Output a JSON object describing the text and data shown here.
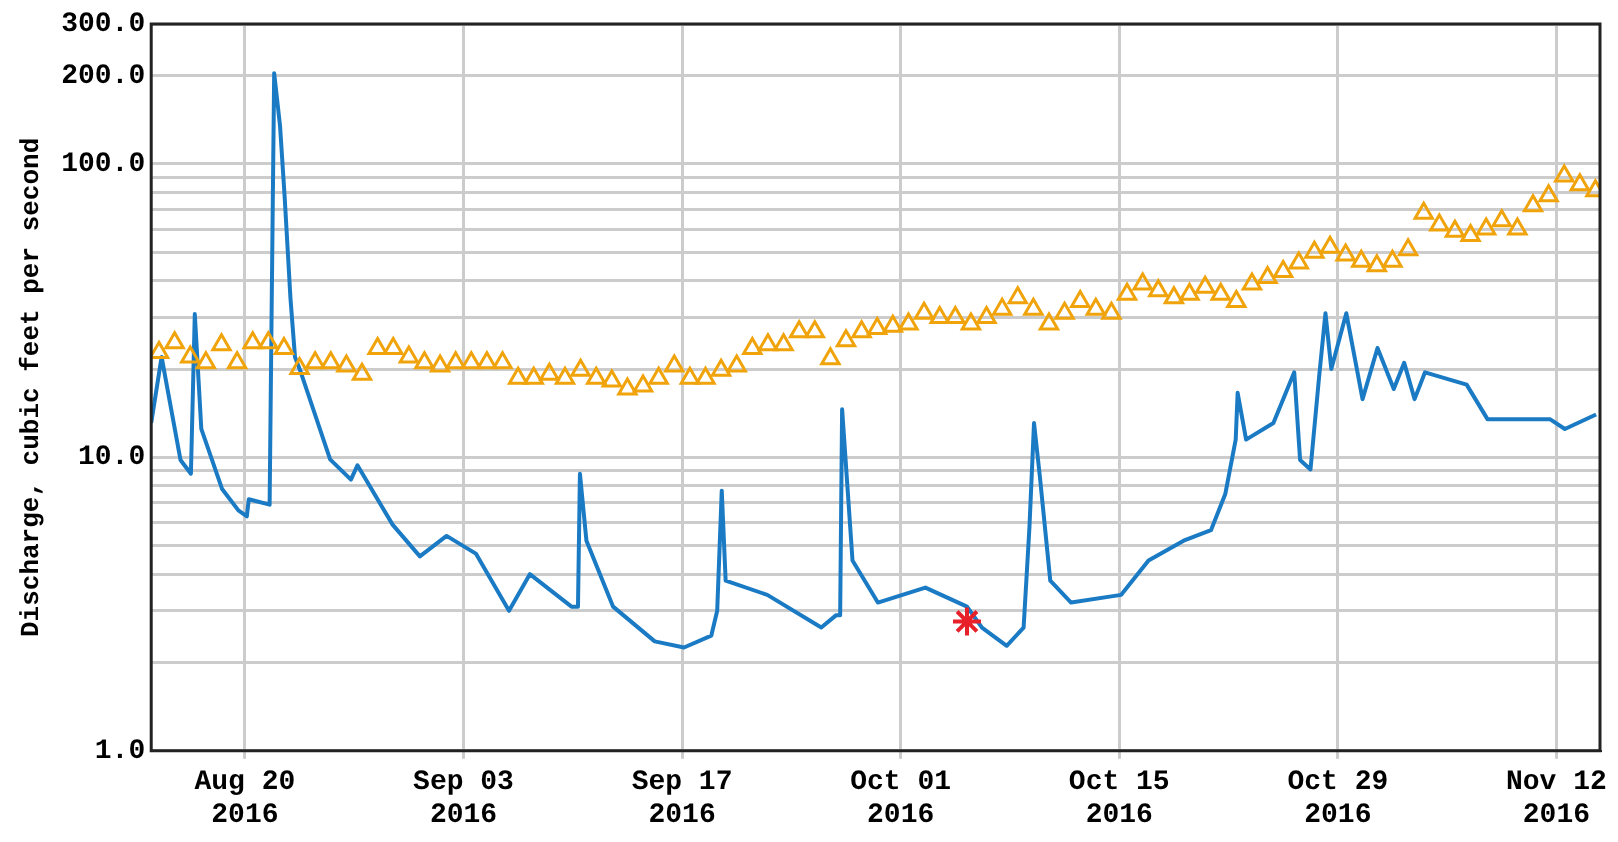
{
  "chart_data": {
    "type": "line",
    "ylabel": "Discharge, cubic feet per second",
    "log": "y",
    "grid": true,
    "xlim": [
      "2016-08-14T00:00",
      "2016-11-14T19:00"
    ],
    "xticks": [
      {
        "value": "2016-08-20",
        "label": "Aug 20\n2016"
      },
      {
        "value": "2016-09-03",
        "label": "Sep 03\n2016"
      },
      {
        "value": "2016-09-17",
        "label": "Sep 17\n2016"
      },
      {
        "value": "2016-10-01",
        "label": "Oct 01\n2016"
      },
      {
        "value": "2016-10-15",
        "label": "Oct 15\n2016"
      },
      {
        "value": "2016-10-29",
        "label": "Oct 29\n2016"
      },
      {
        "value": "2016-11-12",
        "label": "Nov 12\n2016"
      }
    ],
    "ylim": [
      1,
      300
    ],
    "yticks": [
      {
        "value": 1,
        "label": "1.0"
      },
      {
        "value": 2,
        "label": null
      },
      {
        "value": 3,
        "label": null
      },
      {
        "value": 4,
        "label": null
      },
      {
        "value": 5,
        "label": null
      },
      {
        "value": 6,
        "label": null
      },
      {
        "value": 7,
        "label": null
      },
      {
        "value": 8,
        "label": null
      },
      {
        "value": 9,
        "label": null
      },
      {
        "value": 10,
        "label": "10.0"
      },
      {
        "value": 20,
        "label": null
      },
      {
        "value": 30,
        "label": null
      },
      {
        "value": 40,
        "label": null
      },
      {
        "value": 50,
        "label": null
      },
      {
        "value": 60,
        "label": null
      },
      {
        "value": 70,
        "label": null
      },
      {
        "value": 80,
        "label": null
      },
      {
        "value": 90,
        "label": null
      },
      {
        "value": 100,
        "label": "100.0"
      },
      {
        "value": 200,
        "label": "200.0"
      },
      {
        "value": 300,
        "label": "300.0"
      }
    ],
    "series": [
      {
        "type": "line",
        "marker": "none",
        "line_style": "solid",
        "color": "#1a7bc4",
        "x": [
          "2016-08-14T00:00",
          "2016-08-14T16:00",
          "2016-08-14T22:00",
          "2016-08-15T21:00",
          "2016-08-16T13:00",
          "2016-08-16T19:00",
          "2016-08-17T05:00",
          "2016-08-18T13:00",
          "2016-08-19T14:00",
          "2016-08-20T03:00",
          "2016-08-20T06:00",
          "2016-08-21T14:00",
          "2016-08-21T17:00",
          "2016-08-21T21:00",
          "2016-08-22T06:00",
          "2016-08-22T13:00",
          "2016-08-22T22:00",
          "2016-08-23T05:00",
          "2016-08-23T14:00",
          "2016-08-25T11:00",
          "2016-08-26T19:00",
          "2016-08-27T05:00",
          "2016-08-29T11:00",
          "2016-08-31T05:00",
          "2016-09-01T22:00",
          "2016-09-03T19:00",
          "2016-09-05T22:00",
          "2016-09-07T06:00",
          "2016-09-09T22:00",
          "2016-09-10T08:00",
          "2016-09-10T11:00",
          "2016-09-10T21:00",
          "2016-09-12T14:00",
          "2016-09-15T06:00",
          "2016-09-17T03:00",
          "2016-09-18T21:00",
          "2016-09-19T06:00",
          "2016-09-19T13:00",
          "2016-09-19T19:00",
          "2016-09-22T11:00",
          "2016-09-25T22:00",
          "2016-09-26T21:00",
          "2016-09-27T03:00",
          "2016-09-27T06:00",
          "2016-09-27T22:00",
          "2016-09-29T13:00",
          "2016-10-02T14:00",
          "2016-10-05T06:00",
          "2016-10-06T05:00",
          "2016-10-07T19:00",
          "2016-10-08T21:00",
          "2016-10-09T06:00",
          "2016-10-09T13:00",
          "2016-10-09T22:00",
          "2016-10-10T14:00",
          "2016-10-11T22:00",
          "2016-10-15T03:00",
          "2016-10-16T21:00",
          "2016-10-19T03:00",
          "2016-10-20T21:00",
          "2016-10-21T19:00",
          "2016-10-22T11:00",
          "2016-10-22T14:00",
          "2016-10-23T03:00",
          "2016-10-24T21:00",
          "2016-10-26T05:00",
          "2016-10-26T14:00",
          "2016-10-27T06:00",
          "2016-10-27T19:00",
          "2016-10-28T05:00",
          "2016-10-28T14:00",
          "2016-10-29T13:00",
          "2016-10-30T14:00",
          "2016-10-31T13:00",
          "2016-11-01T14:00",
          "2016-11-02T06:00",
          "2016-11-02T22:00",
          "2016-11-03T14:00",
          "2016-11-06T06:00",
          "2016-11-07T14:00",
          "2016-11-11T14:00",
          "2016-11-12T13:00",
          "2016-11-14T13:00"
        ],
        "values": [
          13.1,
          22,
          18.6,
          9.8,
          8.8,
          30.8,
          12.5,
          7.8,
          6.6,
          6.3,
          7.2,
          6.9,
          30,
          204,
          135,
          78,
          35,
          22,
          19.5,
          9.85,
          8.4,
          9.4,
          5.9,
          4.6,
          5.4,
          4.7,
          3.0,
          4.0,
          3.1,
          3.1,
          8.8,
          5.2,
          3.1,
          2.36,
          2.25,
          2.47,
          3.0,
          7.7,
          3.8,
          3.4,
          2.63,
          2.9,
          2.9,
          14.6,
          4.45,
          3.2,
          3.6,
          3.1,
          2.63,
          2.28,
          2.63,
          5.8,
          13.1,
          8.6,
          3.8,
          3.2,
          3.4,
          4.45,
          5.2,
          5.65,
          7.5,
          11.5,
          16.6,
          11.5,
          13.1,
          19.5,
          9.8,
          9.1,
          18.6,
          31,
          20,
          31,
          15.8,
          23.6,
          17.1,
          21,
          15.8,
          19.5,
          17.7,
          13.5,
          13.5,
          12.5,
          14.0
        ]
      },
      {
        "type": "scatter",
        "marker": "triangle",
        "color": "#f0a30a",
        "x": [
          "2016-08-14T12:00",
          "2016-08-15T12:00",
          "2016-08-16T12:00",
          "2016-08-17T12:00",
          "2016-08-18T12:00",
          "2016-08-19T12:00",
          "2016-08-20T12:00",
          "2016-08-21T12:00",
          "2016-08-22T12:00",
          "2016-08-23T12:00",
          "2016-08-24T12:00",
          "2016-08-25T12:00",
          "2016-08-26T12:00",
          "2016-08-27T12:00",
          "2016-08-28T12:00",
          "2016-08-29T12:00",
          "2016-08-30T12:00",
          "2016-08-31T12:00",
          "2016-09-01T12:00",
          "2016-09-02T12:00",
          "2016-09-03T12:00",
          "2016-09-04T12:00",
          "2016-09-05T12:00",
          "2016-09-06T12:00",
          "2016-09-07T12:00",
          "2016-09-08T12:00",
          "2016-09-09T12:00",
          "2016-09-10T12:00",
          "2016-09-11T12:00",
          "2016-09-12T12:00",
          "2016-09-13T12:00",
          "2016-09-14T12:00",
          "2016-09-15T12:00",
          "2016-09-16T12:00",
          "2016-09-17T12:00",
          "2016-09-18T12:00",
          "2016-09-19T12:00",
          "2016-09-20T12:00",
          "2016-09-21T12:00",
          "2016-09-22T12:00",
          "2016-09-23T12:00",
          "2016-09-24T12:00",
          "2016-09-25T12:00",
          "2016-09-26T12:00",
          "2016-09-27T12:00",
          "2016-09-28T12:00",
          "2016-09-29T12:00",
          "2016-09-30T12:00",
          "2016-10-01T12:00",
          "2016-10-02T12:00",
          "2016-10-03T12:00",
          "2016-10-04T12:00",
          "2016-10-05T12:00",
          "2016-10-06T12:00",
          "2016-10-07T12:00",
          "2016-10-08T12:00",
          "2016-10-09T12:00",
          "2016-10-10T12:00",
          "2016-10-11T12:00",
          "2016-10-12T12:00",
          "2016-10-13T12:00",
          "2016-10-14T12:00",
          "2016-10-15T12:00",
          "2016-10-16T12:00",
          "2016-10-17T12:00",
          "2016-10-18T12:00",
          "2016-10-19T12:00",
          "2016-10-20T12:00",
          "2016-10-21T12:00",
          "2016-10-22T12:00",
          "2016-10-23T12:00",
          "2016-10-24T12:00",
          "2016-10-25T12:00",
          "2016-10-26T12:00",
          "2016-10-27T12:00",
          "2016-10-28T12:00",
          "2016-10-29T12:00",
          "2016-10-30T12:00",
          "2016-10-31T12:00",
          "2016-11-01T12:00",
          "2016-11-02T12:00",
          "2016-11-03T12:00",
          "2016-11-04T12:00",
          "2016-11-05T12:00",
          "2016-11-06T12:00",
          "2016-11-07T12:00",
          "2016-11-08T12:00",
          "2016-11-09T12:00",
          "2016-11-10T12:00",
          "2016-11-11T12:00",
          "2016-11-12T12:00",
          "2016-11-13T12:00",
          "2016-11-14T12:00"
        ],
        "values": [
          22.8,
          24.6,
          22,
          21,
          24.2,
          21,
          24.6,
          24.6,
          23.5,
          20.1,
          21,
          21,
          20.5,
          19.2,
          23.5,
          23.5,
          22,
          21,
          20.5,
          21,
          21,
          21,
          21,
          18.6,
          18.6,
          19.2,
          18.6,
          19.8,
          18.6,
          18.2,
          17.1,
          17.5,
          18.6,
          20.5,
          18.6,
          18.6,
          19.8,
          20.5,
          23.5,
          24.2,
          24.2,
          26.8,
          26.8,
          21.7,
          25,
          26.8,
          27.5,
          28,
          28.5,
          31,
          30,
          30,
          28.5,
          30,
          32,
          35,
          32,
          28.5,
          31,
          34,
          32,
          31,
          36,
          39,
          37,
          35,
          36,
          38,
          36,
          34,
          39,
          41,
          43,
          46,
          50,
          52,
          49,
          46.6,
          45,
          46.6,
          51,
          68,
          62,
          59,
          57,
          60,
          64,
          60,
          72,
          78,
          91,
          85,
          81
        ]
      },
      {
        "type": "scatter",
        "marker": "cross",
        "color": "#e8202a",
        "x": [
          "2016-10-05T06:00"
        ],
        "values": [
          2.76
        ]
      }
    ]
  }
}
